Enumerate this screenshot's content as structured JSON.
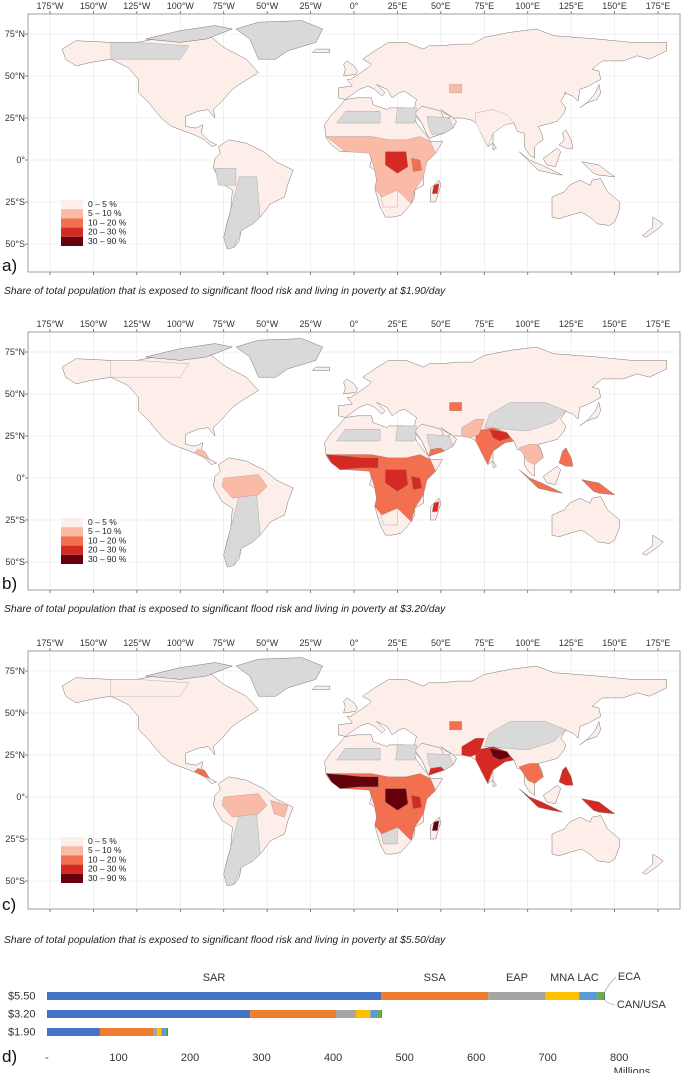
{
  "maps": [
    {
      "letter": "a)",
      "caption": "Share of total population that is exposed to significant flood risk and living in poverty at $1.90/day",
      "intensity": 1
    },
    {
      "letter": "b)",
      "caption": "Share of total population that is exposed to significant flood risk and living in poverty at $3.20/day",
      "intensity": 2
    },
    {
      "letter": "c)",
      "caption": "Share of total population that is exposed to significant flood risk and living in poverty at $5.50/day",
      "intensity": 3
    }
  ],
  "lon_labels": [
    "175°W",
    "150°W",
    "125°W",
    "100°W",
    "75°W",
    "50°W",
    "25°W",
    "0°",
    "25°E",
    "50°E",
    "75°E",
    "100°E",
    "125°E",
    "150°E",
    "175°E"
  ],
  "lat_labels": [
    "75°N",
    "50°N",
    "25°N",
    "0°",
    "25°S",
    "50°S"
  ],
  "legend": [
    {
      "label": "0 – 5 %",
      "color": "#fdeee9"
    },
    {
      "label": "5 – 10 %",
      "color": "#f9bba5"
    },
    {
      "label": "10 – 20 %",
      "color": "#f26f4f"
    },
    {
      "label": "20 – 30 %",
      "color": "#d42a23"
    },
    {
      "label": "30 – 90 %",
      "color": "#67000d"
    }
  ],
  "no_data_color": "#d9d9d9",
  "bar_panel_letter": "d)",
  "chart_data": {
    "type": "bar",
    "orientation": "horizontal",
    "stacked": true,
    "categories": [
      "$5.50",
      "$3.20",
      "$1.90"
    ],
    "series": [
      {
        "name": "SAR",
        "color": "#4472c4",
        "values": [
          467,
          284,
          74
        ]
      },
      {
        "name": "SSA",
        "color": "#ed7d31",
        "values": [
          150,
          120,
          75
        ]
      },
      {
        "name": "EAP",
        "color": "#a5a5a5",
        "values": [
          80,
          28,
          5
        ]
      },
      {
        "name": "MNA",
        "color": "#ffc000",
        "values": [
          47,
          20,
          6
        ]
      },
      {
        "name": "LAC",
        "color": "#5b9bd5",
        "values": [
          25,
          10,
          5
        ]
      },
      {
        "name": "ECA",
        "color": "#70ad47",
        "values": [
          10,
          5,
          3
        ]
      },
      {
        "name": "CAN/USA",
        "color": "#264478",
        "values": [
          1,
          1,
          1
        ]
      }
    ],
    "x_ticks": [
      "-",
      "100",
      "200",
      "300",
      "400",
      "500",
      "600",
      "700",
      "800"
    ],
    "xlim": [
      0,
      850
    ],
    "xlabel": "Millions"
  }
}
